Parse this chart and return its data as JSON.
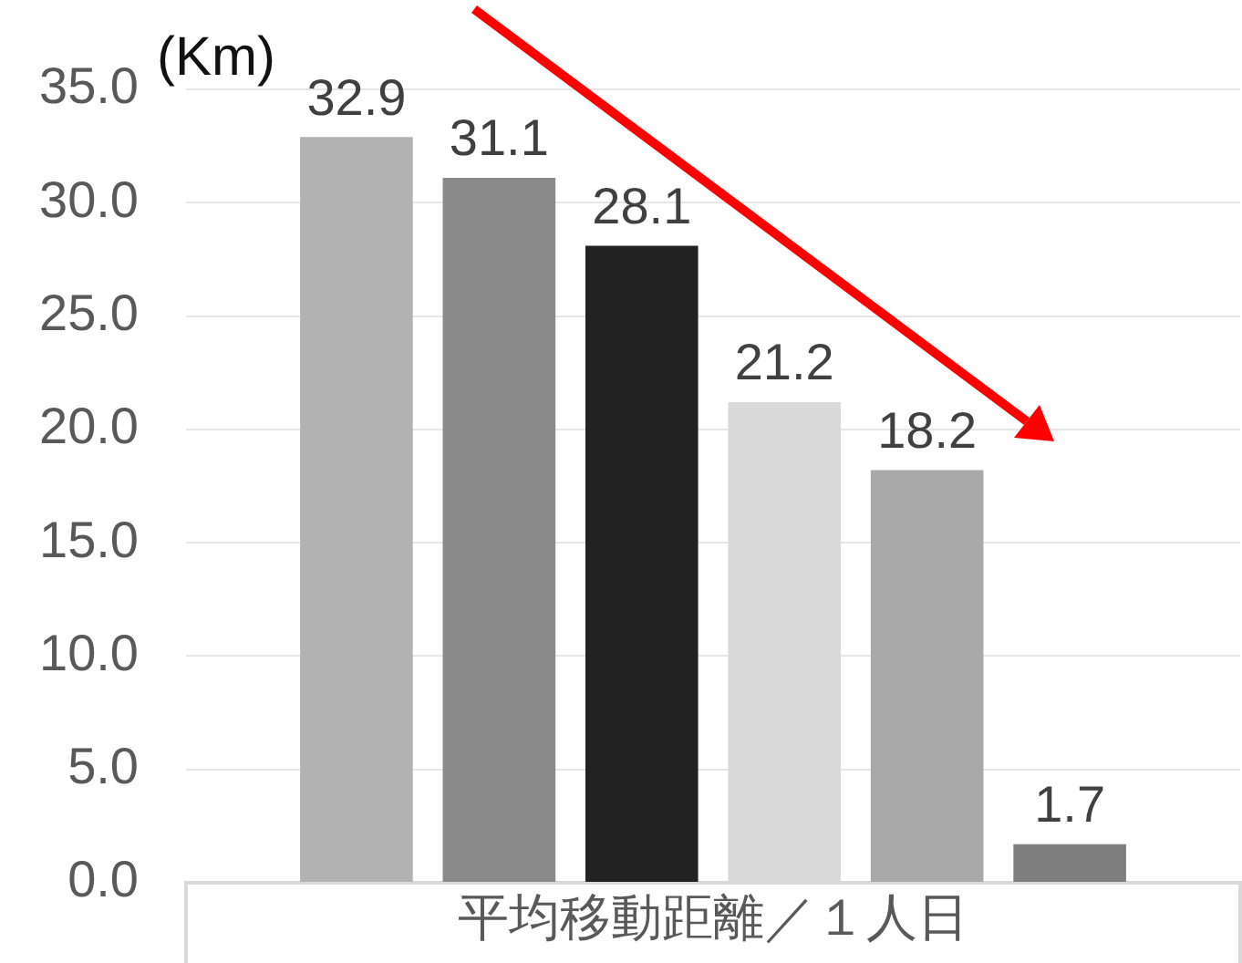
{
  "chart_data": {
    "type": "bar",
    "categories": [
      "平均移動距離／１人日"
    ],
    "ylabel": "(Km)",
    "series": [
      {
        "color": "#b2b2b2",
        "values": [
          32.9
        ]
      },
      {
        "color": "#898989",
        "values": [
          31.1
        ]
      },
      {
        "color": "#222222",
        "values": [
          28.1
        ]
      },
      {
        "color": "#d9d9d9",
        "values": [
          21.2
        ]
      },
      {
        "color": "#a9a9a9",
        "values": [
          18.2
        ]
      },
      {
        "color": "#7f7f7f",
        "values": [
          1.7
        ]
      }
    ],
    "ylim": [
      0,
      35
    ],
    "yticks": [
      {
        "value": 0,
        "label": "0.0"
      },
      {
        "value": 5,
        "label": "5.0"
      },
      {
        "value": 10,
        "label": "10.0"
      },
      {
        "value": 15,
        "label": "15.0"
      },
      {
        "value": 20,
        "label": "20.0"
      },
      {
        "value": 25,
        "label": "25.0"
      },
      {
        "value": 30,
        "label": "30.0"
      },
      {
        "value": 35,
        "label": "35.0"
      }
    ],
    "grid": "y",
    "data_labels": true
  }
}
